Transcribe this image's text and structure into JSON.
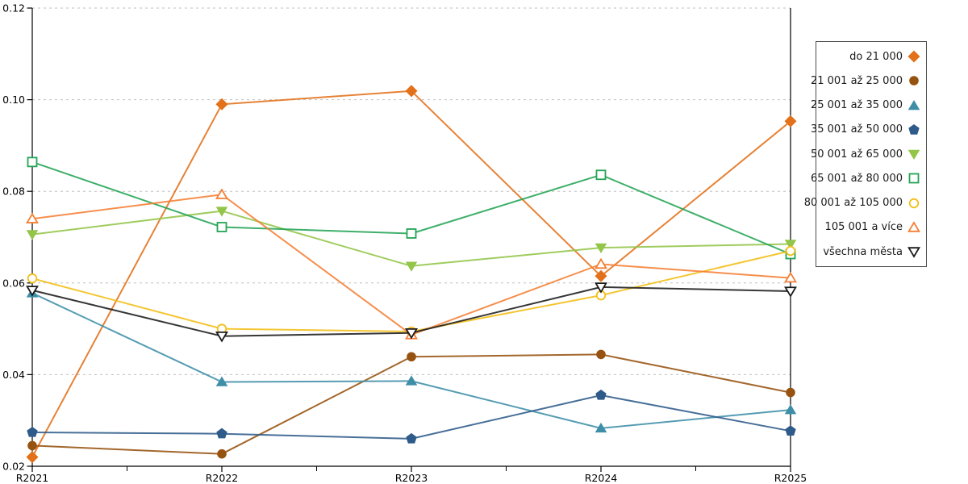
{
  "chart_data": {
    "type": "line",
    "title": "",
    "xlabel": "",
    "ylabel": "",
    "x": [
      "R2021",
      "R2022",
      "R2023",
      "R2024",
      "R2025"
    ],
    "ylim": [
      0.02,
      0.12
    ],
    "ytick_labels": [
      "0.02",
      "0.04",
      "0.06",
      "0.08",
      "0.10",
      "0.12"
    ],
    "grid": "horizontal dashed",
    "legend_position": "outside right, markers after right-aligned text",
    "axis_color": "#000000",
    "gridline_color": "#bfbfbf",
    "series": [
      {
        "name": "do 21 000",
        "color": "#e2711a",
        "marker": "diamond",
        "filled": true,
        "values": [
          0.022,
          0.099,
          0.1019,
          0.0615,
          0.0953
        ]
      },
      {
        "name": "21 001 až 25 000",
        "color": "#96520f",
        "marker": "circle",
        "filled": true,
        "values": [
          0.0245,
          0.0227,
          0.0439,
          0.0444,
          0.0361
        ]
      },
      {
        "name": "25 001 až 35 000",
        "color": "#3e8ea8",
        "marker": "triangle-up",
        "filled": true,
        "values": [
          0.0578,
          0.0384,
          0.0386,
          0.0283,
          0.0323
        ]
      },
      {
        "name": "35 001 až 50 000",
        "color": "#2f5b8a",
        "marker": "pentagon",
        "filled": true,
        "values": [
          0.0274,
          0.0271,
          0.026,
          0.0355,
          0.0277
        ]
      },
      {
        "name": "50 001 až 65 000",
        "color": "#92c548",
        "marker": "triangle-down",
        "filled": true,
        "values": [
          0.0706,
          0.0757,
          0.0637,
          0.0677,
          0.0685
        ]
      },
      {
        "name": "65 001 až 80 000",
        "color": "#23a455",
        "marker": "square",
        "filled": false,
        "values": [
          0.0864,
          0.0722,
          0.0708,
          0.0836,
          0.0663
        ]
      },
      {
        "name": "80 001 až 105 000",
        "color": "#f2be16",
        "marker": "circle",
        "filled": false,
        "values": [
          0.061,
          0.05,
          0.0494,
          0.0573,
          0.067
        ]
      },
      {
        "name": "105 001 a více",
        "color": "#f57e33",
        "marker": "triangle-up",
        "filled": false,
        "values": [
          0.074,
          0.0793,
          0.0487,
          0.0641,
          0.0611
        ]
      },
      {
        "name": "všechna města",
        "color": "#1a1a1a",
        "marker": "triangle-down",
        "filled": false,
        "values": [
          0.0584,
          0.0484,
          0.0491,
          0.0591,
          0.0582
        ]
      }
    ]
  }
}
